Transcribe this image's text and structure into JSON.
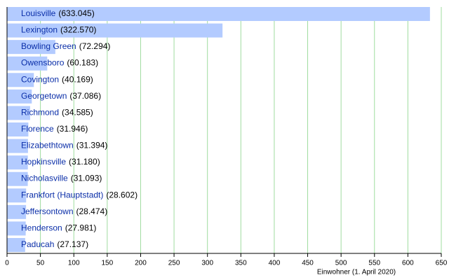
{
  "chart_data": {
    "type": "bar",
    "orientation": "horizontal",
    "categories": [
      "Louisville",
      "Lexington",
      "Bowling Green",
      "Owensboro",
      "Covington",
      "Georgetown",
      "Richmond",
      "Florence",
      "Elizabethtown",
      "Hopkinsville",
      "Nicholasville",
      "Frankfort (Hauptstadt)",
      "Jeffersontown",
      "Henderson",
      "Paducah"
    ],
    "values": [
      633.045,
      322.57,
      72.294,
      60.183,
      40.169,
      37.086,
      34.585,
      31.946,
      31.394,
      31.18,
      31.093,
      28.602,
      28.474,
      27.981,
      27.137
    ],
    "value_labels": [
      "(633.045)",
      "(322.570)",
      "(72.294)",
      "(60.183)",
      "(40.169)",
      "(37.086)",
      "(34.585)",
      "(31.946)",
      "(31.394)",
      "(31.180)",
      "(31.093)",
      "(28.602)",
      "(28.474)",
      "(27.981)",
      "(27.137)"
    ],
    "color": "#b3cbff",
    "grid_color": "#9fdc9f",
    "xlim": [
      0,
      650
    ],
    "xticks": [
      0,
      50,
      100,
      150,
      200,
      250,
      300,
      350,
      400,
      450,
      500,
      550,
      600,
      650
    ],
    "xlabel": "Einwohner (1. April 2020)",
    "grid": true
  }
}
